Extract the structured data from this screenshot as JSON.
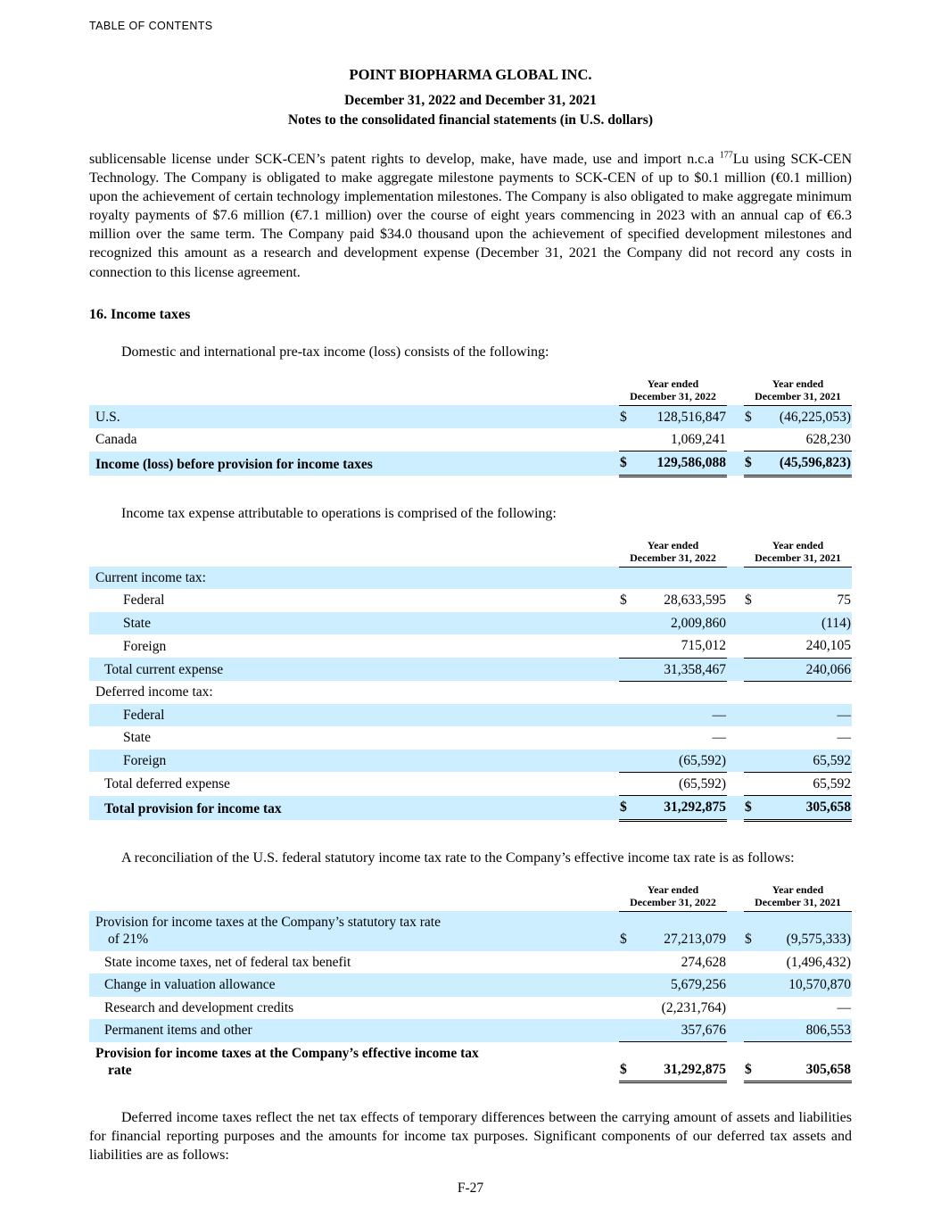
{
  "page": {
    "toc_label": "TABLE OF CONTENTS",
    "footer": "F-27"
  },
  "header": {
    "company": "POINT BIOPHARMA GLOBAL INC.",
    "period": "December 31, 2022 and December 31, 2021",
    "notes": "Notes to the consolidated financial statements (in U.S. dollars)"
  },
  "paragraphs": {
    "license_pre": "sublicensable license under SCK-CEN’s patent rights to develop, make, have made, use and import n.c.a ",
    "license_sup": "177",
    "license_post": "Lu using SCK-CEN Technology. The Company is obligated to make aggregate milestone payments to SCK-CEN of up to $0.1 million (€0.1 million) upon the achievement of certain technology implementation milestones. The Company is also obligated to make aggregate minimum royalty payments of $7.6 million (€7.1 million) over the course of eight years commencing in 2023 with an annual cap of €6.3 million over the same term. The Company paid $34.0 thousand upon the achievement of specified development milestones and recognized this amount as a research and development expense (December 31, 2021 the Company did not record any costs in connection to this license agreement.",
    "section_heading": "16. Income taxes",
    "pretax_intro": "Domestic and international pre-tax income (loss) consists of the following:",
    "expense_intro": "Income tax expense attributable to operations is comprised of the following:",
    "reconciliation_intro": "A reconciliation of the U.S. federal statutory income tax rate to the Company’s effective income tax rate is as follows:",
    "deferred_outro": "Deferred income taxes reflect the net tax effects of temporary differences between the carrying amount of assets and liabilities for financial reporting purposes and the amounts for income tax purposes. Significant components of our deferred tax assets and liabilities are as follows:"
  },
  "style": {
    "row_shade_color": "#cceeff",
    "text_color": "#000000"
  },
  "tables": [
    {
      "name": "pretax-income-table",
      "headers": [
        {
          "line1": "Year ended",
          "line2": "December 31, 2022"
        },
        {
          "line1": "Year ended",
          "line2": "December 31, 2021"
        }
      ],
      "rows": [
        {
          "label": "U.S.",
          "indent": 0,
          "bold": false,
          "shaded": true,
          "d1": "$",
          "v1": "128,516,847",
          "d2": "$",
          "v2": "(46,225,053)",
          "rule": "none"
        },
        {
          "label": "Canada",
          "indent": 0,
          "bold": false,
          "shaded": false,
          "d1": "",
          "v1": "1,069,241",
          "d2": "",
          "v2": "628,230",
          "rule": "bottom"
        },
        {
          "label": "Income (loss) before provision for income taxes",
          "indent": 0,
          "bold": true,
          "shaded": true,
          "d1": "$",
          "v1": "129,586,088",
          "d2": "$",
          "v2": "(45,596,823)",
          "rule": "double"
        }
      ]
    },
    {
      "name": "tax-expense-table",
      "headers": [
        {
          "line1": "Year ended",
          "line2": "December 31, 2022"
        },
        {
          "line1": "Year ended",
          "line2": "December 31, 2021"
        }
      ],
      "rows": [
        {
          "label": "Current income tax:",
          "indent": 0,
          "bold": false,
          "shaded": true,
          "d1": "",
          "v1": "",
          "d2": "",
          "v2": "",
          "rule": "none"
        },
        {
          "label": "Federal",
          "indent": 2,
          "bold": false,
          "shaded": false,
          "d1": "$",
          "v1": "28,633,595",
          "d2": "$",
          "v2": "75",
          "rule": "none"
        },
        {
          "label": "State",
          "indent": 2,
          "bold": false,
          "shaded": true,
          "d1": "",
          "v1": "2,009,860",
          "d2": "",
          "v2": "(114)",
          "rule": "none"
        },
        {
          "label": "Foreign",
          "indent": 2,
          "bold": false,
          "shaded": false,
          "d1": "",
          "v1": "715,012",
          "d2": "",
          "v2": "240,105",
          "rule": "bottom"
        },
        {
          "label": "Total current expense",
          "indent": 1,
          "bold": false,
          "shaded": true,
          "d1": "",
          "v1": "31,358,467",
          "d2": "",
          "v2": "240,066",
          "rule": "bottom"
        },
        {
          "label": "Deferred income tax:",
          "indent": 0,
          "bold": false,
          "shaded": false,
          "d1": "",
          "v1": "",
          "d2": "",
          "v2": "",
          "rule": "none"
        },
        {
          "label": "Federal",
          "indent": 2,
          "bold": false,
          "shaded": true,
          "d1": "",
          "v1": "—",
          "d2": "",
          "v2": "—",
          "rule": "none"
        },
        {
          "label": "State",
          "indent": 2,
          "bold": false,
          "shaded": false,
          "d1": "",
          "v1": "—",
          "d2": "",
          "v2": "—",
          "rule": "none"
        },
        {
          "label": "Foreign",
          "indent": 2,
          "bold": false,
          "shaded": true,
          "d1": "",
          "v1": "(65,592)",
          "d2": "",
          "v2": "65,592",
          "rule": "bottom"
        },
        {
          "label": "Total deferred expense",
          "indent": 1,
          "bold": false,
          "shaded": false,
          "d1": "",
          "v1": "(65,592)",
          "d2": "",
          "v2": "65,592",
          "rule": "bottom"
        },
        {
          "label": "Total provision for income tax",
          "indent": 1,
          "bold": true,
          "shaded": true,
          "d1": "$",
          "v1": "31,292,875",
          "d2": "$",
          "v2": "305,658",
          "rule": "double"
        }
      ]
    },
    {
      "name": "rate-reconciliation-table",
      "headers": [
        {
          "line1": "Year ended",
          "line2": "December 31, 2022"
        },
        {
          "line1": "Year ended",
          "line2": "December 31, 2021"
        }
      ],
      "rows": [
        {
          "label": "Provision for income taxes at the Company’s statutory tax rate",
          "label2": "of 21%",
          "indent": 0,
          "bold": false,
          "shaded": true,
          "d1": "$",
          "v1": "27,213,079",
          "d2": "$",
          "v2": "(9,575,333)",
          "rule": "none"
        },
        {
          "label": "State income taxes, net of federal tax benefit",
          "indent": 1,
          "bold": false,
          "shaded": false,
          "d1": "",
          "v1": "274,628",
          "d2": "",
          "v2": "(1,496,432)",
          "rule": "none"
        },
        {
          "label": "Change in valuation allowance",
          "indent": 1,
          "bold": false,
          "shaded": true,
          "d1": "",
          "v1": "5,679,256",
          "d2": "",
          "v2": "10,570,870",
          "rule": "none"
        },
        {
          "label": "Research and development credits",
          "indent": 1,
          "bold": false,
          "shaded": false,
          "d1": "",
          "v1": "(2,231,764)",
          "d2": "",
          "v2": "—",
          "rule": "none"
        },
        {
          "label": "Permanent items and other",
          "indent": 1,
          "bold": false,
          "shaded": true,
          "d1": "",
          "v1": "357,676",
          "d2": "",
          "v2": "806,553",
          "rule": "bottom"
        },
        {
          "label": "Provision for income taxes at the Company’s effective income tax",
          "label2": "rate",
          "indent": 0,
          "bold": true,
          "shaded": false,
          "d1": "$",
          "v1": "31,292,875",
          "d2": "$",
          "v2": "305,658",
          "rule": "double"
        }
      ]
    }
  ]
}
